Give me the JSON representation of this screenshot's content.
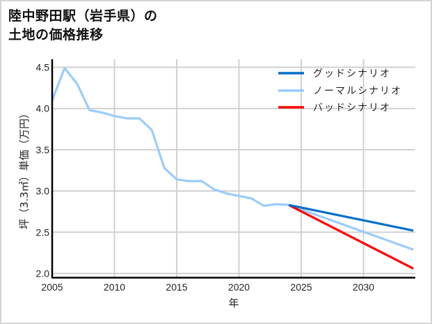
{
  "title_line1": "陸中野田駅（岩手県）の",
  "title_line2": "土地の価格推移",
  "chart_data": {
    "type": "line",
    "title": "陸中野田駅（岩手県）の土地の価格推移",
    "xlabel": "年",
    "ylabel": "坪（3.3㎡）単価（万円）",
    "xlim": [
      2005,
      2034
    ],
    "ylim": [
      1.95,
      4.59
    ],
    "grid": true,
    "legend_position": "upper right",
    "x_ticks": [
      "2005",
      "2010",
      "2015",
      "2020",
      "2025",
      "2030"
    ],
    "y_ticks": [
      "2.0",
      "2.5",
      "3.0",
      "3.5",
      "4.0",
      "4.5"
    ],
    "series": [
      {
        "name": "グッドシナリオ",
        "color": "#0070c8",
        "x": [
          2024,
          2034
        ],
        "values": [
          2.83,
          2.52
        ]
      },
      {
        "name": "ノーマルシナリオ",
        "color": "#99ccff",
        "x": [
          2005,
          2006,
          2007,
          2008,
          2009,
          2010,
          2011,
          2012,
          2013,
          2014,
          2015,
          2016,
          2017,
          2018,
          2019,
          2020,
          2021,
          2022,
          2023,
          2024,
          2034
        ],
        "values": [
          4.1,
          4.49,
          4.3,
          3.98,
          3.95,
          3.91,
          3.88,
          3.88,
          3.74,
          3.28,
          3.14,
          3.12,
          3.12,
          3.02,
          2.97,
          2.94,
          2.91,
          2.82,
          2.84,
          2.83,
          2.29
        ]
      },
      {
        "name": "バッドシナリオ",
        "color": "#ff0000",
        "x": [
          2024,
          2034
        ],
        "values": [
          2.83,
          2.06
        ]
      }
    ]
  }
}
